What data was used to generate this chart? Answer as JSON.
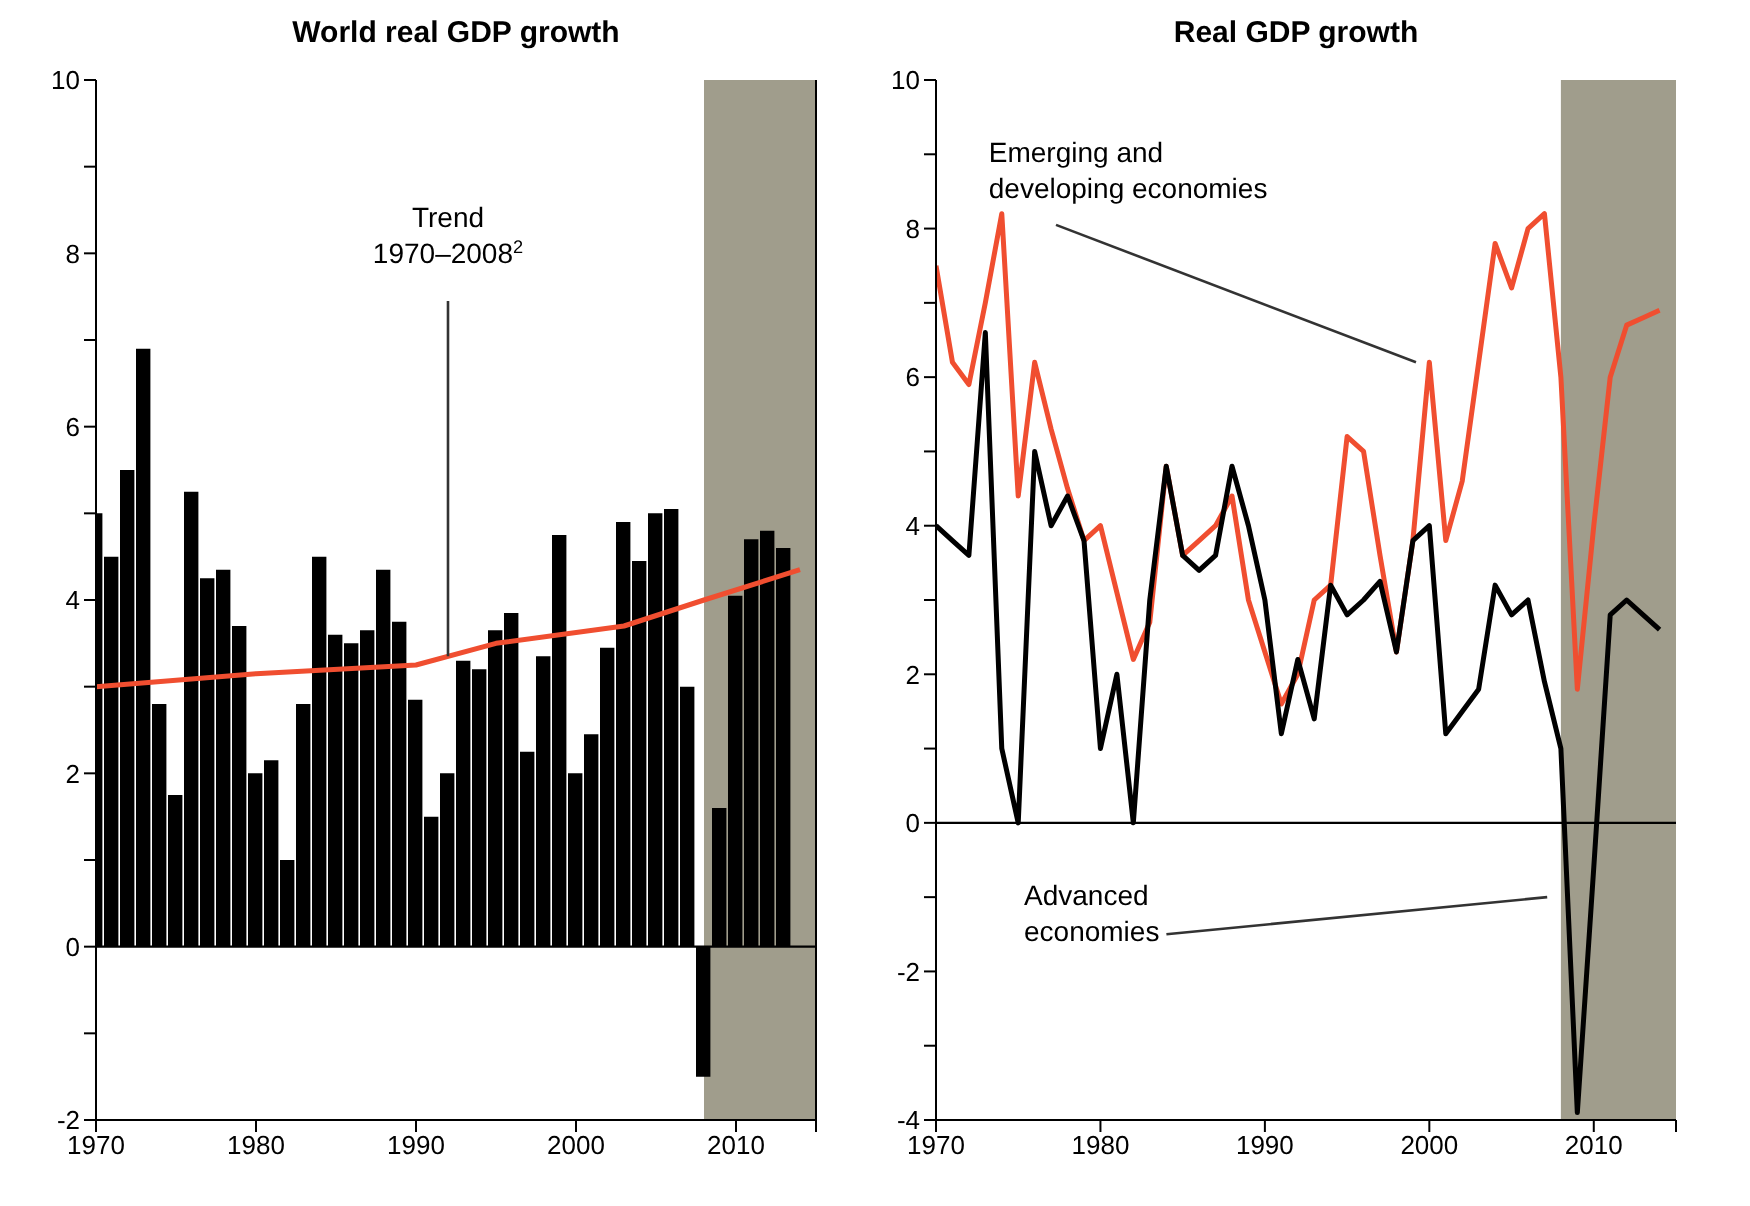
{
  "chart_data": [
    {
      "type": "bar",
      "title": "World real GDP growth",
      "series": [
        {
          "color": "#000000",
          "x": [
            1970,
            1971,
            1972,
            1973,
            1974,
            1975,
            1976,
            1977,
            1978,
            1979,
            1980,
            1981,
            1982,
            1983,
            1984,
            1985,
            1986,
            1987,
            1988,
            1989,
            1990,
            1991,
            1992,
            1993,
            1994,
            1995,
            1996,
            1997,
            1998,
            1999,
            2000,
            2001,
            2002,
            2003,
            2004,
            2005,
            2006,
            2007,
            2008,
            2009,
            2010,
            2011,
            2012,
            2013
          ],
          "values": [
            5.0,
            4.5,
            5.5,
            6.9,
            2.8,
            1.75,
            5.25,
            4.25,
            4.35,
            3.7,
            2.0,
            2.15,
            1.0,
            2.8,
            4.5,
            3.6,
            3.5,
            3.65,
            4.35,
            3.75,
            2.85,
            1.5,
            2.0,
            3.3,
            3.2,
            3.65,
            3.85,
            2.25,
            3.35,
            4.75,
            2.0,
            2.45,
            3.45,
            4.9,
            4.45,
            5.0,
            5.05,
            3.0,
            -1.5,
            1.6,
            4.05,
            4.7,
            4.8,
            4.6
          ]
        },
        {
          "type": "line",
          "color": "#f04e30",
          "x": [
            1970,
            1980,
            1990,
            1995,
            2003,
            2008,
            2014
          ],
          "values": [
            3.0,
            3.15,
            3.25,
            3.5,
            3.7,
            4.0,
            4.35
          ]
        }
      ],
      "xlim": [
        1970,
        2015
      ],
      "xticks": [
        1970,
        1980,
        1990,
        2000,
        2010,
        {
          "value": 2015,
          "label": null
        }
      ],
      "ylim": [
        -2,
        10
      ],
      "yticks": [
        -2,
        {
          "value": -1,
          "label": null
        },
        0,
        {
          "value": 1,
          "label": null
        },
        2,
        {
          "value": 3,
          "label": null
        },
        4,
        {
          "value": 5,
          "label": null
        },
        6,
        {
          "value": 7,
          "label": null
        },
        8,
        {
          "value": 9,
          "label": null
        },
        10
      ],
      "bands": [
        {
          "axis": "x",
          "from": 2008,
          "to": 2015,
          "color": "#a09d8c"
        }
      ],
      "ref_lines": [
        {
          "axis": "y",
          "value": 0,
          "color": "#000000"
        }
      ],
      "annotations": [
        {
          "text": "Trend 1970–2008$^{2}$",
          "x": 1992,
          "y": 3.35
        }
      ],
      "grid": false,
      "legend": false
    },
    {
      "type": "line",
      "title": "Real GDP growth",
      "series": [
        {
          "color": "#f04e30",
          "x": [
            1970,
            1971,
            1972,
            1973,
            1974,
            1975,
            1976,
            1977,
            1978,
            1979,
            1980,
            1981,
            1982,
            1983,
            1984,
            1985,
            1986,
            1987,
            1988,
            1989,
            1990,
            1991,
            1992,
            1993,
            1994,
            1995,
            1996,
            1997,
            1998,
            1999,
            2000,
            2001,
            2002,
            2003,
            2004,
            2005,
            2006,
            2007,
            2008,
            2009,
            2010,
            2011,
            2012,
            2013,
            2014
          ],
          "values": [
            7.5,
            6.2,
            5.9,
            7.0,
            8.2,
            4.4,
            6.2,
            5.3,
            4.5,
            3.8,
            4.0,
            3.1,
            2.2,
            2.7,
            4.8,
            3.6,
            3.8,
            4.0,
            4.4,
            3.0,
            2.3,
            1.6,
            2.0,
            3.0,
            3.2,
            5.2,
            5.0,
            3.6,
            2.3,
            3.8,
            6.2,
            3.8,
            4.6,
            6.2,
            7.8,
            7.2,
            8.0,
            8.2,
            6.0,
            1.8,
            4.0,
            6.0,
            6.7,
            6.8,
            6.9
          ]
        },
        {
          "color": "#000000",
          "x": [
            1970,
            1971,
            1972,
            1973,
            1974,
            1975,
            1976,
            1977,
            1978,
            1979,
            1980,
            1981,
            1982,
            1983,
            1984,
            1985,
            1986,
            1987,
            1988,
            1989,
            1990,
            1991,
            1992,
            1993,
            1994,
            1995,
            1996,
            1997,
            1998,
            1999,
            2000,
            2001,
            2002,
            2003,
            2004,
            2005,
            2006,
            2007,
            2008,
            2009,
            2010,
            2011,
            2012,
            2013,
            2014
          ],
          "values": [
            4.0,
            3.8,
            3.6,
            6.6,
            1.0,
            0.0,
            5.0,
            4.0,
            4.4,
            3.8,
            1.0,
            2.0,
            0.0,
            3.0,
            4.8,
            3.6,
            3.4,
            3.6,
            4.8,
            4.0,
            3.0,
            1.2,
            2.2,
            1.4,
            3.2,
            2.8,
            3.0,
            3.25,
            2.3,
            3.8,
            4.0,
            1.2,
            1.5,
            1.8,
            3.2,
            2.8,
            3.0,
            1.9,
            1.0,
            -3.9,
            -0.6,
            2.8,
            3.0,
            2.8,
            2.6
          ]
        }
      ],
      "xlim": [
        1970,
        2015
      ],
      "xticks": [
        1970,
        1980,
        1990,
        2000,
        2010,
        {
          "value": 2015,
          "label": null
        }
      ],
      "ylim": [
        -4,
        10
      ],
      "yticks": [
        -4,
        {
          "value": -3,
          "label": null
        },
        -2,
        {
          "value": -1,
          "label": null
        },
        0,
        {
          "value": 1,
          "label": null
        },
        2,
        {
          "value": 3,
          "label": null
        },
        4,
        {
          "value": 5,
          "label": null
        },
        6,
        {
          "value": 7,
          "label": null
        },
        8,
        {
          "value": 9,
          "label": null
        },
        10
      ],
      "bands": [
        {
          "axis": "x",
          "from": 2008,
          "to": 2015,
          "color": "#a09d8c"
        }
      ],
      "ref_lines": [
        {
          "axis": "y",
          "value": 0,
          "color": "#000000"
        }
      ],
      "annotations": [
        {
          "text": "Emerging and developing economies",
          "x": 2000,
          "y": 6.2
        },
        "Advanced economies"
      ],
      "grid": false,
      "legend": false
    }
  ]
}
